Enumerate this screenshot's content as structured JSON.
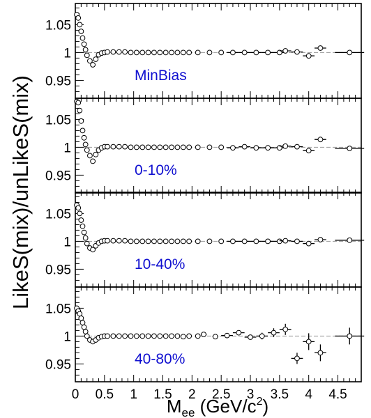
{
  "figure": {
    "ylabel": "LikeS(mix)/unLikeS(mix)",
    "xlabel_main": "M",
    "xlabel_sub": "ee",
    "xlabel_unit_pre": " (GeV/c",
    "xlabel_unit_sup": "2",
    "xlabel_unit_post": ")"
  },
  "chart_data": [
    {
      "type": "scatter",
      "label": "MinBias",
      "label_color": "#1010d0",
      "xlim": [
        0,
        4.9
      ],
      "ylim": [
        0.918,
        1.088
      ],
      "reference_line": 1,
      "yticks": [
        0.95,
        1,
        1.05
      ],
      "ytick_labels": [
        "0.95",
        "1",
        "1.05"
      ],
      "points": [
        {
          "x": 0.025,
          "y": 1.068
        },
        {
          "x": 0.05,
          "y": 1.062
        },
        {
          "x": 0.075,
          "y": 1.05
        },
        {
          "x": 0.1,
          "y": 1.038
        },
        {
          "x": 0.125,
          "y": 1.026
        },
        {
          "x": 0.15,
          "y": 1.015
        },
        {
          "x": 0.175,
          "y": 1.005
        },
        {
          "x": 0.2,
          "y": 0.995
        },
        {
          "x": 0.25,
          "y": 0.985
        },
        {
          "x": 0.3,
          "y": 0.978
        },
        {
          "x": 0.35,
          "y": 0.988
        },
        {
          "x": 0.4,
          "y": 0.996
        },
        {
          "x": 0.45,
          "y": 0.999
        },
        {
          "x": 0.5,
          "y": 1.0
        },
        {
          "x": 0.55,
          "y": 1.001
        },
        {
          "x": 0.65,
          "y": 1.001
        },
        {
          "x": 0.75,
          "y": 1.001
        },
        {
          "x": 0.85,
          "y": 1.001
        },
        {
          "x": 0.95,
          "y": 1.0
        },
        {
          "x": 1.05,
          "y": 1.0
        },
        {
          "x": 1.15,
          "y": 1.0
        },
        {
          "x": 1.25,
          "y": 1.0
        },
        {
          "x": 1.35,
          "y": 1.0
        },
        {
          "x": 1.45,
          "y": 1.0
        },
        {
          "x": 1.55,
          "y": 1.0
        },
        {
          "x": 1.65,
          "y": 1.0
        },
        {
          "x": 1.75,
          "y": 1.0
        },
        {
          "x": 1.85,
          "y": 1.0
        },
        {
          "x": 1.95,
          "y": 1.0
        },
        {
          "x": 2.1,
          "y": 1.0
        },
        {
          "x": 2.3,
          "y": 1.0
        },
        {
          "x": 2.5,
          "y": 1.0
        },
        {
          "x": 2.7,
          "y": 1.0,
          "xerr": 0.1
        },
        {
          "x": 2.9,
          "y": 1.0,
          "xerr": 0.1
        },
        {
          "x": 3.1,
          "y": 1.0,
          "xerr": 0.1
        },
        {
          "x": 3.3,
          "y": 1.0,
          "xerr": 0.1
        },
        {
          "x": 3.5,
          "y": 1.0,
          "xerr": 0.1
        },
        {
          "x": 3.6,
          "y": 1.003,
          "xerr": 0.1
        },
        {
          "x": 3.8,
          "y": 1.001,
          "xerr": 0.1
        },
        {
          "x": 4.0,
          "y": 0.994,
          "xerr": 0.1
        },
        {
          "x": 4.2,
          "y": 1.008,
          "xerr": 0.1
        },
        {
          "x": 4.7,
          "y": 1.0,
          "xerr": 0.25
        }
      ]
    },
    {
      "type": "scatter",
      "label": "0-10%",
      "label_color": "#1010d0",
      "xlim": [
        0,
        4.9
      ],
      "ylim": [
        0.918,
        1.088
      ],
      "reference_line": 1,
      "yticks": [
        0.95,
        1,
        1.05
      ],
      "ytick_labels": [
        "0.95",
        "1",
        "1.05"
      ],
      "points": [
        {
          "x": 0.025,
          "y": 1.082
        },
        {
          "x": 0.05,
          "y": 1.08
        },
        {
          "x": 0.075,
          "y": 1.066
        },
        {
          "x": 0.1,
          "y": 1.047
        },
        {
          "x": 0.125,
          "y": 1.03
        },
        {
          "x": 0.15,
          "y": 1.017
        },
        {
          "x": 0.175,
          "y": 1.005
        },
        {
          "x": 0.2,
          "y": 0.995
        },
        {
          "x": 0.25,
          "y": 0.985
        },
        {
          "x": 0.3,
          "y": 0.975
        },
        {
          "x": 0.35,
          "y": 0.987
        },
        {
          "x": 0.4,
          "y": 0.995
        },
        {
          "x": 0.45,
          "y": 0.999
        },
        {
          "x": 0.5,
          "y": 1.001
        },
        {
          "x": 0.55,
          "y": 1.001
        },
        {
          "x": 0.65,
          "y": 1.001
        },
        {
          "x": 0.75,
          "y": 1.001
        },
        {
          "x": 0.85,
          "y": 1.001
        },
        {
          "x": 0.95,
          "y": 1.0
        },
        {
          "x": 1.05,
          "y": 1.0
        },
        {
          "x": 1.15,
          "y": 1.0
        },
        {
          "x": 1.25,
          "y": 1.0
        },
        {
          "x": 1.35,
          "y": 1.0
        },
        {
          "x": 1.45,
          "y": 1.0
        },
        {
          "x": 1.55,
          "y": 1.0
        },
        {
          "x": 1.65,
          "y": 1.0
        },
        {
          "x": 1.75,
          "y": 1.0
        },
        {
          "x": 1.85,
          "y": 1.0
        },
        {
          "x": 1.95,
          "y": 1.0
        },
        {
          "x": 2.1,
          "y": 1.0
        },
        {
          "x": 2.3,
          "y": 1.0
        },
        {
          "x": 2.5,
          "y": 1.0
        },
        {
          "x": 2.7,
          "y": 0.999,
          "xerr": 0.1
        },
        {
          "x": 2.9,
          "y": 1.001,
          "xerr": 0.1
        },
        {
          "x": 3.1,
          "y": 0.999,
          "xerr": 0.1
        },
        {
          "x": 3.3,
          "y": 0.999,
          "xerr": 0.1
        },
        {
          "x": 3.5,
          "y": 0.999,
          "xerr": 0.1
        },
        {
          "x": 3.6,
          "y": 1.002,
          "xerr": 0.1
        },
        {
          "x": 3.8,
          "y": 1.001,
          "xerr": 0.1
        },
        {
          "x": 4.0,
          "y": 0.994,
          "xerr": 0.1
        },
        {
          "x": 4.2,
          "y": 1.014,
          "xerr": 0.1
        },
        {
          "x": 4.7,
          "y": 0.998,
          "xerr": 0.25
        }
      ]
    },
    {
      "type": "scatter",
      "label": "10-40%",
      "label_color": "#1010d0",
      "xlim": [
        0,
        4.9
      ],
      "ylim": [
        0.918,
        1.088
      ],
      "reference_line": 1,
      "yticks": [
        0.95,
        1,
        1.05
      ],
      "ytick_labels": [
        "0.95",
        "1",
        "1.05"
      ],
      "points": [
        {
          "x": 0.025,
          "y": 1.065
        },
        {
          "x": 0.05,
          "y": 1.06
        },
        {
          "x": 0.075,
          "y": 1.05
        },
        {
          "x": 0.1,
          "y": 1.038
        },
        {
          "x": 0.125,
          "y": 1.027
        },
        {
          "x": 0.15,
          "y": 1.016
        },
        {
          "x": 0.175,
          "y": 1.006
        },
        {
          "x": 0.2,
          "y": 0.996
        },
        {
          "x": 0.25,
          "y": 0.988
        },
        {
          "x": 0.3,
          "y": 0.985
        },
        {
          "x": 0.35,
          "y": 0.992
        },
        {
          "x": 0.4,
          "y": 0.997
        },
        {
          "x": 0.45,
          "y": 1.0
        },
        {
          "x": 0.5,
          "y": 1.001
        },
        {
          "x": 0.55,
          "y": 1.001
        },
        {
          "x": 0.65,
          "y": 1.001
        },
        {
          "x": 0.75,
          "y": 1.001
        },
        {
          "x": 0.85,
          "y": 1.001
        },
        {
          "x": 0.95,
          "y": 1.0
        },
        {
          "x": 1.05,
          "y": 1.0
        },
        {
          "x": 1.15,
          "y": 1.0
        },
        {
          "x": 1.25,
          "y": 1.0
        },
        {
          "x": 1.35,
          "y": 1.0
        },
        {
          "x": 1.45,
          "y": 1.0
        },
        {
          "x": 1.55,
          "y": 1.0
        },
        {
          "x": 1.65,
          "y": 1.0
        },
        {
          "x": 1.75,
          "y": 1.0
        },
        {
          "x": 1.85,
          "y": 1.0
        },
        {
          "x": 1.95,
          "y": 1.0
        },
        {
          "x": 2.1,
          "y": 1.0
        },
        {
          "x": 2.3,
          "y": 1.0
        },
        {
          "x": 2.5,
          "y": 1.0
        },
        {
          "x": 2.7,
          "y": 1.0,
          "xerr": 0.1
        },
        {
          "x": 2.9,
          "y": 1.0,
          "xerr": 0.1
        },
        {
          "x": 3.1,
          "y": 1.0,
          "xerr": 0.1
        },
        {
          "x": 3.3,
          "y": 1.0,
          "xerr": 0.1
        },
        {
          "x": 3.5,
          "y": 1.0,
          "xerr": 0.1
        },
        {
          "x": 3.6,
          "y": 1.001,
          "xerr": 0.1
        },
        {
          "x": 3.8,
          "y": 1.0,
          "xerr": 0.1
        },
        {
          "x": 4.0,
          "y": 0.996,
          "xerr": 0.1
        },
        {
          "x": 4.2,
          "y": 1.003,
          "xerr": 0.1
        },
        {
          "x": 4.7,
          "y": 1.002,
          "xerr": 0.25
        }
      ]
    },
    {
      "type": "scatter",
      "label": "40-80%",
      "label_color": "#1010d0",
      "xlim": [
        0,
        4.9
      ],
      "ylim": [
        0.918,
        1.088
      ],
      "reference_line": 1,
      "yticks": [
        0.95,
        1,
        1.05
      ],
      "ytick_labels": [
        "0.95",
        "1",
        "1.05"
      ],
      "xticks": [
        0,
        0.5,
        1,
        1.5,
        2,
        2.5,
        3,
        3.5,
        4,
        4.5
      ],
      "xtick_labels": [
        "0",
        "0.5",
        "1",
        "1.5",
        "2",
        "2.5",
        "3",
        "3.5",
        "4",
        "4.5"
      ],
      "points": [
        {
          "x": 0.025,
          "y": 1.05
        },
        {
          "x": 0.05,
          "y": 1.045
        },
        {
          "x": 0.075,
          "y": 1.04
        },
        {
          "x": 0.1,
          "y": 1.032
        },
        {
          "x": 0.125,
          "y": 1.024
        },
        {
          "x": 0.15,
          "y": 1.016
        },
        {
          "x": 0.175,
          "y": 1.008
        },
        {
          "x": 0.2,
          "y": 1.0
        },
        {
          "x": 0.25,
          "y": 0.993
        },
        {
          "x": 0.3,
          "y": 0.99
        },
        {
          "x": 0.35,
          "y": 0.993
        },
        {
          "x": 0.4,
          "y": 0.997
        },
        {
          "x": 0.45,
          "y": 0.999
        },
        {
          "x": 0.5,
          "y": 1.0
        },
        {
          "x": 0.55,
          "y": 1.0
        },
        {
          "x": 0.65,
          "y": 1.0
        },
        {
          "x": 0.75,
          "y": 1.0
        },
        {
          "x": 0.85,
          "y": 1.0
        },
        {
          "x": 0.95,
          "y": 1.0
        },
        {
          "x": 1.05,
          "y": 1.0
        },
        {
          "x": 1.15,
          "y": 1.0
        },
        {
          "x": 1.25,
          "y": 1.0
        },
        {
          "x": 1.35,
          "y": 1.0
        },
        {
          "x": 1.45,
          "y": 1.0
        },
        {
          "x": 1.55,
          "y": 1.0
        },
        {
          "x": 1.65,
          "y": 1.0
        },
        {
          "x": 1.75,
          "y": 1.0
        },
        {
          "x": 1.85,
          "y": 0.999
        },
        {
          "x": 1.95,
          "y": 1.0
        },
        {
          "x": 2.1,
          "y": 1.0
        },
        {
          "x": 2.2,
          "y": 1.003,
          "xerr": 0.05
        },
        {
          "x": 2.4,
          "y": 0.999,
          "xerr": 0.05
        },
        {
          "x": 2.6,
          "y": 1.001,
          "xerr": 0.1
        },
        {
          "x": 2.8,
          "y": 1.006,
          "xerr": 0.1,
          "yerr": 0.004
        },
        {
          "x": 3.0,
          "y": 0.998,
          "xerr": 0.1,
          "yerr": 0.004
        },
        {
          "x": 3.2,
          "y": 1.0,
          "xerr": 0.1,
          "yerr": 0.006
        },
        {
          "x": 3.4,
          "y": 1.006,
          "xerr": 0.1,
          "yerr": 0.008
        },
        {
          "x": 3.6,
          "y": 1.012,
          "xerr": 0.1,
          "yerr": 0.01
        },
        {
          "x": 3.8,
          "y": 0.96,
          "xerr": 0.1,
          "yerr": 0.01
        },
        {
          "x": 4.0,
          "y": 0.99,
          "xerr": 0.1,
          "yerr": 0.015
        },
        {
          "x": 4.2,
          "y": 0.97,
          "xerr": 0.1,
          "yerr": 0.015
        },
        {
          "x": 4.7,
          "y": 1.0,
          "xerr": 0.25,
          "yerr": 0.015
        }
      ]
    }
  ]
}
